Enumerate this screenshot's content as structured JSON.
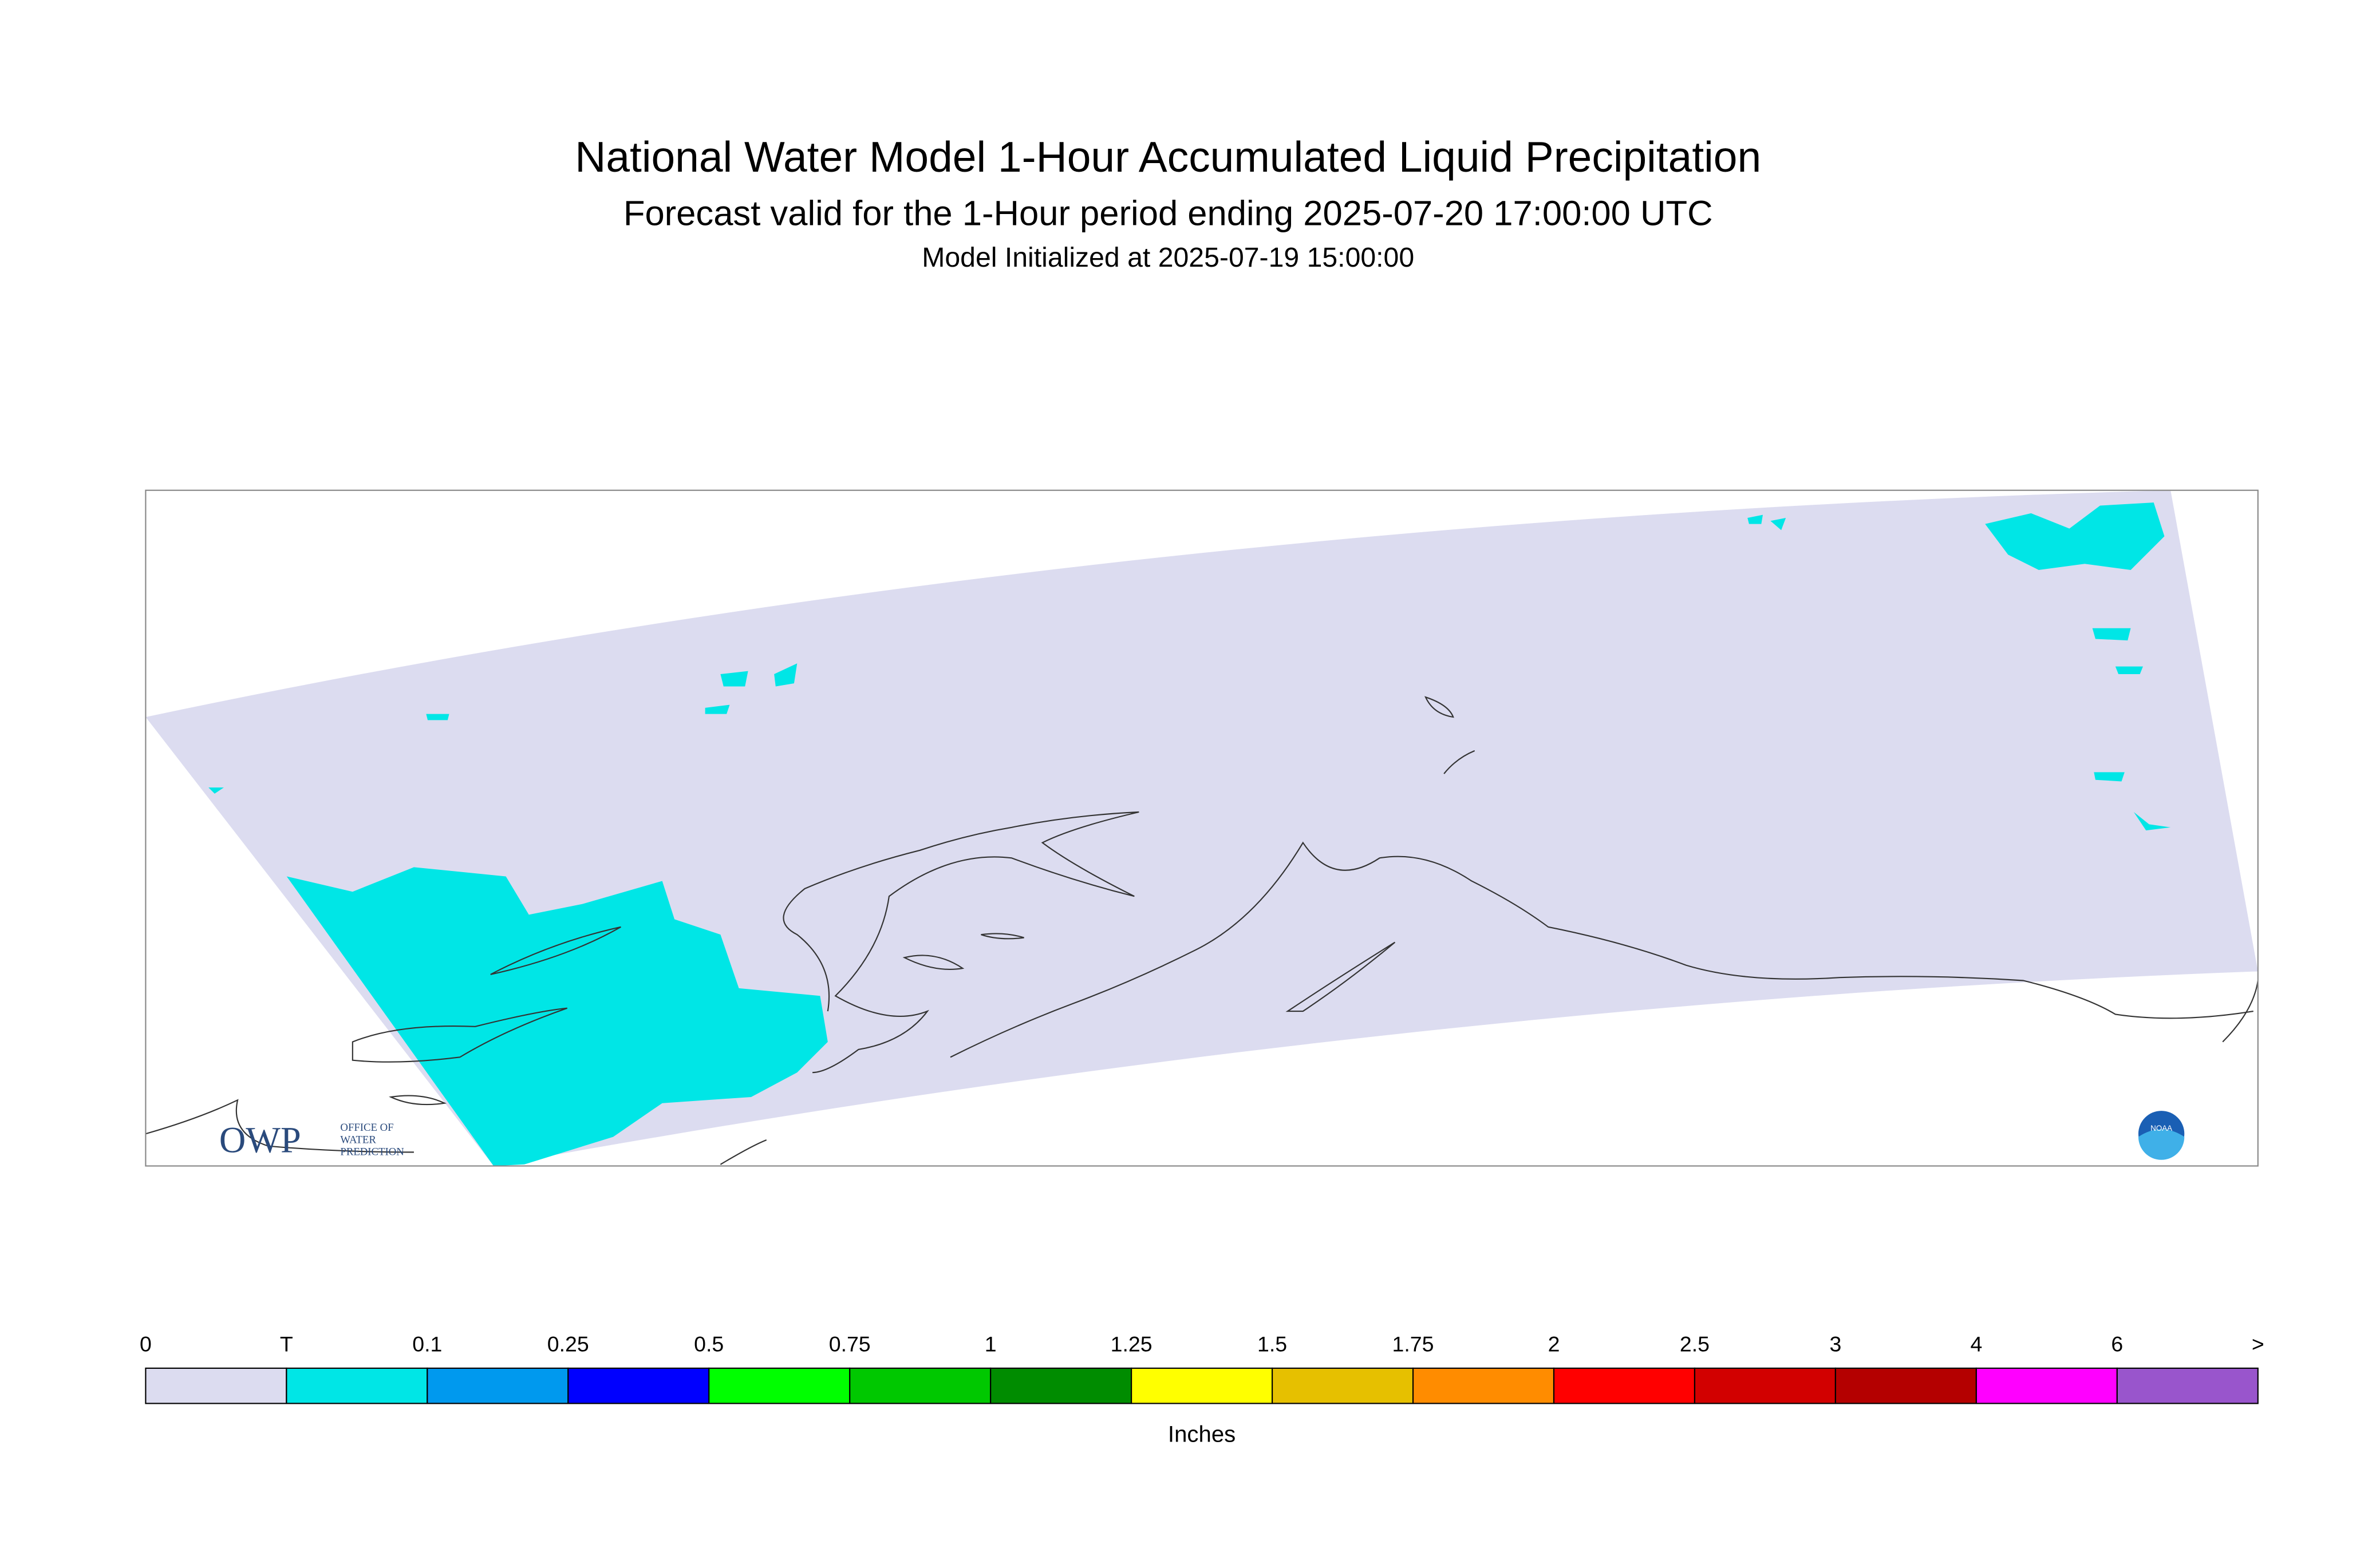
{
  "header": {
    "title": "National Water Model 1-Hour Accumulated Liquid Precipitation",
    "subtitle": "Forecast valid for the 1-Hour period ending 2025-07-20 17:00:00 UTC",
    "initialized": "Model Initialized at 2025-07-19 15:00:00"
  },
  "logos": {
    "owp": "OWP",
    "owp_lines": [
      "OFFICE OF",
      "WATER",
      "PREDICTION"
    ],
    "noaa": "NOAA"
  },
  "legend": {
    "labels": [
      "0",
      "T",
      "0.1",
      "0.25",
      "0.5",
      "0.75",
      "1",
      "1.25",
      "1.5",
      "1.75",
      "2",
      "2.5",
      "3",
      "4",
      "6",
      ">"
    ],
    "colors": [
      "#dcdcf0",
      "#00e6e6",
      "#0099ee",
      "#0000ff",
      "#00ff00",
      "#00c800",
      "#008c00",
      "#ffff00",
      "#e6c000",
      "#ff8c00",
      "#ff0000",
      "#d20000",
      "#b40000",
      "#ff00ff",
      "#9955cc"
    ],
    "unit": "Inches"
  }
}
